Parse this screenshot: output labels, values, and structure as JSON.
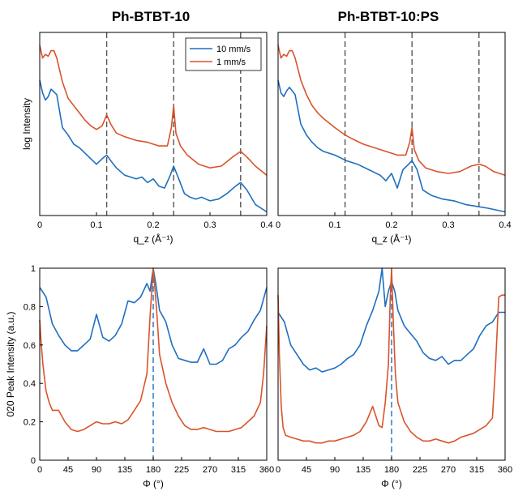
{
  "chart_data": [
    {
      "type": "line",
      "title": "Ph-BTBT-10",
      "xlabel": "q_z (Å⁻¹)",
      "ylabel": "log Intensity",
      "xlim": [
        0,
        0.4
      ],
      "ylim": [
        0,
        1
      ],
      "y_ticks_shown": false,
      "xticks": [
        0,
        0.1,
        0.2,
        0.3,
        0.4
      ],
      "xtick_labels": [
        "0",
        "0.1",
        "0.2",
        "0.3",
        "0.4"
      ],
      "legend": {
        "placement": "top-right",
        "entries": [
          "10 mm/s",
          "1 mm/s"
        ]
      },
      "vlines": [
        0.118,
        0.236,
        0.354
      ],
      "vline_color": "#555555",
      "series": [
        {
          "name": "10 mm/s",
          "color": "#1f6fbf",
          "x": [
            0,
            0.005,
            0.01,
            0.015,
            0.02,
            0.03,
            0.04,
            0.05,
            0.06,
            0.07,
            0.08,
            0.09,
            0.1,
            0.11,
            0.118,
            0.125,
            0.135,
            0.15,
            0.16,
            0.17,
            0.18,
            0.19,
            0.2,
            0.21,
            0.22,
            0.23,
            0.236,
            0.245,
            0.255,
            0.265,
            0.275,
            0.285,
            0.3,
            0.315,
            0.33,
            0.345,
            0.354,
            0.365,
            0.38,
            0.4
          ],
          "y": [
            0.74,
            0.67,
            0.63,
            0.65,
            0.69,
            0.66,
            0.48,
            0.44,
            0.39,
            0.37,
            0.34,
            0.31,
            0.28,
            0.31,
            0.33,
            0.3,
            0.26,
            0.22,
            0.21,
            0.2,
            0.21,
            0.18,
            0.2,
            0.16,
            0.15,
            0.22,
            0.27,
            0.2,
            0.12,
            0.1,
            0.09,
            0.1,
            0.08,
            0.09,
            0.12,
            0.16,
            0.18,
            0.14,
            0.06,
            0.02
          ]
        },
        {
          "name": "1 mm/s",
          "color": "#d9542b",
          "x": [
            0,
            0.005,
            0.01,
            0.015,
            0.02,
            0.025,
            0.03,
            0.04,
            0.05,
            0.06,
            0.07,
            0.08,
            0.09,
            0.1,
            0.11,
            0.118,
            0.125,
            0.135,
            0.15,
            0.17,
            0.19,
            0.21,
            0.225,
            0.232,
            0.236,
            0.24,
            0.248,
            0.26,
            0.28,
            0.3,
            0.32,
            0.34,
            0.354,
            0.365,
            0.38,
            0.4
          ],
          "y": [
            0.93,
            0.86,
            0.88,
            0.87,
            0.9,
            0.9,
            0.86,
            0.73,
            0.64,
            0.6,
            0.56,
            0.52,
            0.49,
            0.47,
            0.49,
            0.55,
            0.5,
            0.45,
            0.43,
            0.41,
            0.4,
            0.38,
            0.38,
            0.48,
            0.6,
            0.45,
            0.38,
            0.33,
            0.28,
            0.26,
            0.27,
            0.32,
            0.35,
            0.32,
            0.27,
            0.22
          ]
        }
      ]
    },
    {
      "type": "line",
      "title": "Ph-BTBT-10:PS",
      "xlabel": "q_z (Å⁻¹)",
      "ylabel": "",
      "xlim": [
        0,
        0.4
      ],
      "ylim": [
        0,
        1
      ],
      "y_ticks_shown": false,
      "xticks": [
        0,
        0.1,
        0.2,
        0.3,
        0.4
      ],
      "xtick_labels": [
        "0",
        "0.1",
        "0.2",
        "0.3",
        "0.4"
      ],
      "vlines": [
        0.118,
        0.236,
        0.354
      ],
      "vline_color": "#555555",
      "series": [
        {
          "name": "10 mm/s",
          "color": "#1f6fbf",
          "x": [
            0,
            0.005,
            0.01,
            0.015,
            0.02,
            0.03,
            0.04,
            0.05,
            0.06,
            0.07,
            0.08,
            0.1,
            0.12,
            0.14,
            0.16,
            0.18,
            0.19,
            0.2,
            0.21,
            0.22,
            0.23,
            0.236,
            0.245,
            0.255,
            0.27,
            0.29,
            0.31,
            0.33,
            0.35,
            0.37,
            0.4
          ],
          "y": [
            0.74,
            0.67,
            0.65,
            0.68,
            0.7,
            0.66,
            0.5,
            0.44,
            0.4,
            0.37,
            0.35,
            0.33,
            0.3,
            0.28,
            0.25,
            0.22,
            0.19,
            0.23,
            0.15,
            0.25,
            0.28,
            0.3,
            0.25,
            0.14,
            0.11,
            0.09,
            0.08,
            0.06,
            0.05,
            0.04,
            0.02
          ]
        },
        {
          "name": "1 mm/s",
          "color": "#d9542b",
          "x": [
            0,
            0.005,
            0.01,
            0.015,
            0.02,
            0.025,
            0.03,
            0.04,
            0.05,
            0.06,
            0.07,
            0.08,
            0.1,
            0.118,
            0.13,
            0.15,
            0.17,
            0.19,
            0.21,
            0.225,
            0.232,
            0.236,
            0.24,
            0.248,
            0.26,
            0.28,
            0.3,
            0.32,
            0.34,
            0.354,
            0.365,
            0.38,
            0.4
          ],
          "y": [
            0.93,
            0.86,
            0.88,
            0.87,
            0.9,
            0.9,
            0.86,
            0.74,
            0.66,
            0.6,
            0.56,
            0.53,
            0.48,
            0.44,
            0.42,
            0.39,
            0.37,
            0.35,
            0.33,
            0.33,
            0.4,
            0.48,
            0.36,
            0.3,
            0.26,
            0.24,
            0.23,
            0.24,
            0.27,
            0.28,
            0.27,
            0.24,
            0.22
          ]
        }
      ]
    },
    {
      "type": "line",
      "xlabel": "Φ (°)",
      "ylabel": "020 Peak Intensity (a.u.)",
      "xlim": [
        0,
        360
      ],
      "ylim": [
        0,
        1
      ],
      "xticks": [
        0,
        45,
        90,
        135,
        180,
        225,
        270,
        315,
        360
      ],
      "yticks": [
        0,
        0.2,
        0.4,
        0.6,
        0.8,
        1
      ],
      "ytick_labels": [
        "0",
        "0.2",
        "0.4",
        "0.6",
        "0.8",
        "1"
      ],
      "vlines": [
        180
      ],
      "vline_color": "#1f6fbf",
      "series": [
        {
          "name": "10 mm/s",
          "color": "#1f6fbf",
          "x": [
            0,
            10,
            20,
            30,
            40,
            50,
            60,
            70,
            80,
            90,
            100,
            110,
            120,
            130,
            140,
            150,
            160,
            170,
            175,
            180,
            185,
            190,
            200,
            210,
            220,
            230,
            240,
            250,
            260,
            270,
            280,
            290,
            300,
            310,
            320,
            330,
            340,
            350,
            360
          ],
          "y": [
            0.9,
            0.85,
            0.71,
            0.65,
            0.6,
            0.57,
            0.57,
            0.6,
            0.63,
            0.76,
            0.64,
            0.62,
            0.65,
            0.71,
            0.83,
            0.82,
            0.85,
            0.92,
            0.88,
            1.0,
            0.9,
            0.78,
            0.72,
            0.6,
            0.53,
            0.52,
            0.51,
            0.51,
            0.58,
            0.5,
            0.5,
            0.52,
            0.58,
            0.6,
            0.64,
            0.67,
            0.73,
            0.78,
            0.9
          ]
        },
        {
          "name": "1 mm/s",
          "color": "#d9542b",
          "x": [
            0,
            2,
            5,
            10,
            15,
            20,
            30,
            40,
            50,
            60,
            70,
            80,
            90,
            100,
            110,
            120,
            130,
            140,
            150,
            160,
            170,
            175,
            180,
            185,
            190,
            200,
            210,
            220,
            230,
            240,
            250,
            260,
            270,
            280,
            290,
            300,
            310,
            320,
            330,
            340,
            350,
            355,
            360
          ],
          "y": [
            0.73,
            0.62,
            0.5,
            0.36,
            0.3,
            0.26,
            0.26,
            0.2,
            0.16,
            0.15,
            0.16,
            0.18,
            0.2,
            0.19,
            0.19,
            0.2,
            0.19,
            0.21,
            0.26,
            0.31,
            0.45,
            0.75,
            1.0,
            0.8,
            0.55,
            0.4,
            0.3,
            0.23,
            0.18,
            0.16,
            0.16,
            0.17,
            0.16,
            0.15,
            0.15,
            0.15,
            0.16,
            0.17,
            0.2,
            0.23,
            0.3,
            0.45,
            0.7
          ]
        }
      ]
    },
    {
      "type": "line",
      "xlabel": "Φ (°)",
      "ylabel": "",
      "xlim": [
        0,
        360
      ],
      "ylim": [
        0,
        1
      ],
      "xticks": [
        0,
        45,
        90,
        135,
        180,
        225,
        270,
        315,
        360
      ],
      "y_ticks_shown": false,
      "vlines": [
        180
      ],
      "vline_color": "#1f6fbf",
      "series": [
        {
          "name": "10 mm/s",
          "color": "#1f6fbf",
          "x": [
            0,
            10,
            20,
            30,
            40,
            50,
            60,
            70,
            80,
            90,
            100,
            110,
            120,
            130,
            140,
            150,
            160,
            165,
            170,
            175,
            180,
            185,
            190,
            200,
            210,
            220,
            230,
            240,
            250,
            260,
            270,
            280,
            290,
            300,
            310,
            320,
            330,
            340,
            350,
            360
          ],
          "y": [
            0.77,
            0.72,
            0.6,
            0.55,
            0.5,
            0.47,
            0.48,
            0.46,
            0.47,
            0.48,
            0.5,
            0.53,
            0.55,
            0.6,
            0.7,
            0.78,
            0.88,
            1.0,
            0.8,
            0.88,
            0.93,
            0.88,
            0.78,
            0.7,
            0.66,
            0.62,
            0.56,
            0.53,
            0.52,
            0.54,
            0.5,
            0.52,
            0.52,
            0.55,
            0.58,
            0.65,
            0.7,
            0.72,
            0.77,
            0.77
          ]
        },
        {
          "name": "1 mm/s",
          "color": "#d9542b",
          "x": [
            0,
            2,
            5,
            8,
            12,
            20,
            30,
            40,
            50,
            60,
            70,
            80,
            90,
            100,
            110,
            120,
            130,
            140,
            150,
            160,
            165,
            170,
            175,
            178,
            180,
            183,
            186,
            190,
            200,
            210,
            220,
            230,
            240,
            250,
            260,
            270,
            280,
            290,
            300,
            310,
            320,
            330,
            340,
            345,
            350,
            355,
            360
          ],
          "y": [
            0.86,
            0.55,
            0.28,
            0.17,
            0.13,
            0.12,
            0.11,
            0.1,
            0.1,
            0.09,
            0.09,
            0.1,
            0.1,
            0.11,
            0.12,
            0.13,
            0.15,
            0.2,
            0.28,
            0.18,
            0.17,
            0.3,
            0.5,
            0.85,
            1.0,
            0.7,
            0.45,
            0.3,
            0.2,
            0.15,
            0.12,
            0.1,
            0.1,
            0.11,
            0.1,
            0.09,
            0.1,
            0.12,
            0.13,
            0.14,
            0.16,
            0.18,
            0.22,
            0.5,
            0.85,
            0.86,
            0.86
          ]
        }
      ]
    }
  ]
}
